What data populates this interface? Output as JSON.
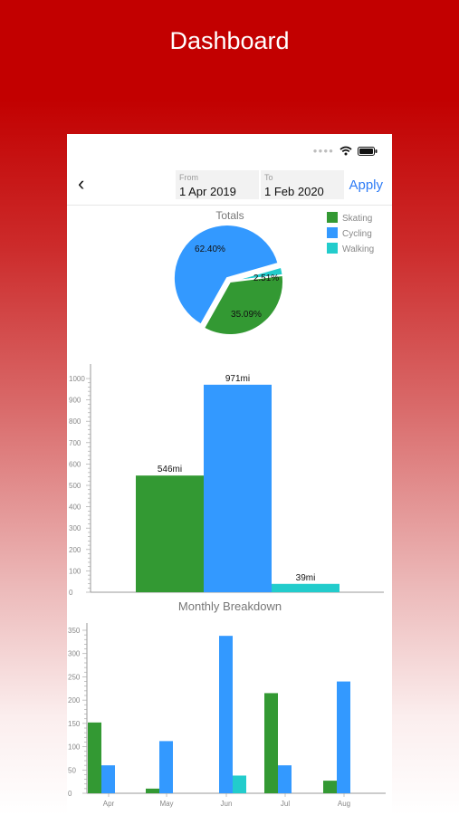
{
  "header": {
    "title": "Dashboard"
  },
  "nav": {
    "from_label": "From",
    "from_value": "1 Apr 2019",
    "to_label": "To",
    "to_value": "1 Feb 2020",
    "apply_label": "Apply"
  },
  "colors": {
    "skating": "#339933",
    "cycling": "#3399ff",
    "walking": "#22cccc",
    "brand_red": "#c20000",
    "accent_blue": "#2e7cf6"
  },
  "chart_data": [
    {
      "type": "pie",
      "title": "Totals",
      "labels": [
        "Skating",
        "Cycling",
        "Walking"
      ],
      "values": [
        35.09,
        62.4,
        2.51
      ],
      "value_labels": [
        "35.09%",
        "62.40%",
        "2.51%"
      ],
      "legend": "top-right"
    },
    {
      "type": "bar",
      "title": "",
      "categories": [
        "Skating",
        "Cycling",
        "Walking"
      ],
      "values": [
        546,
        971,
        39
      ],
      "value_labels": [
        "546mi",
        "971mi",
        "39mi"
      ],
      "ylim": [
        0,
        1000
      ],
      "yticks": [
        "0",
        "100",
        "200",
        "300",
        "400",
        "500",
        "600",
        "700",
        "800",
        "900",
        "1000"
      ]
    },
    {
      "type": "bar",
      "title": "Monthly Breakdown",
      "categories": [
        "Apr",
        "May",
        "Jun",
        "Jul",
        "Aug"
      ],
      "series": [
        {
          "name": "Skating",
          "values": [
            152,
            10,
            0,
            215,
            27
          ]
        },
        {
          "name": "Cycling",
          "values": [
            60,
            112,
            338,
            60,
            240
          ]
        },
        {
          "name": "Walking",
          "values": [
            0,
            0,
            38,
            0,
            0
          ]
        }
      ],
      "ylim": [
        0,
        350
      ],
      "yticks": [
        "0",
        "50",
        "100",
        "150",
        "200",
        "250",
        "300",
        "350"
      ]
    }
  ]
}
